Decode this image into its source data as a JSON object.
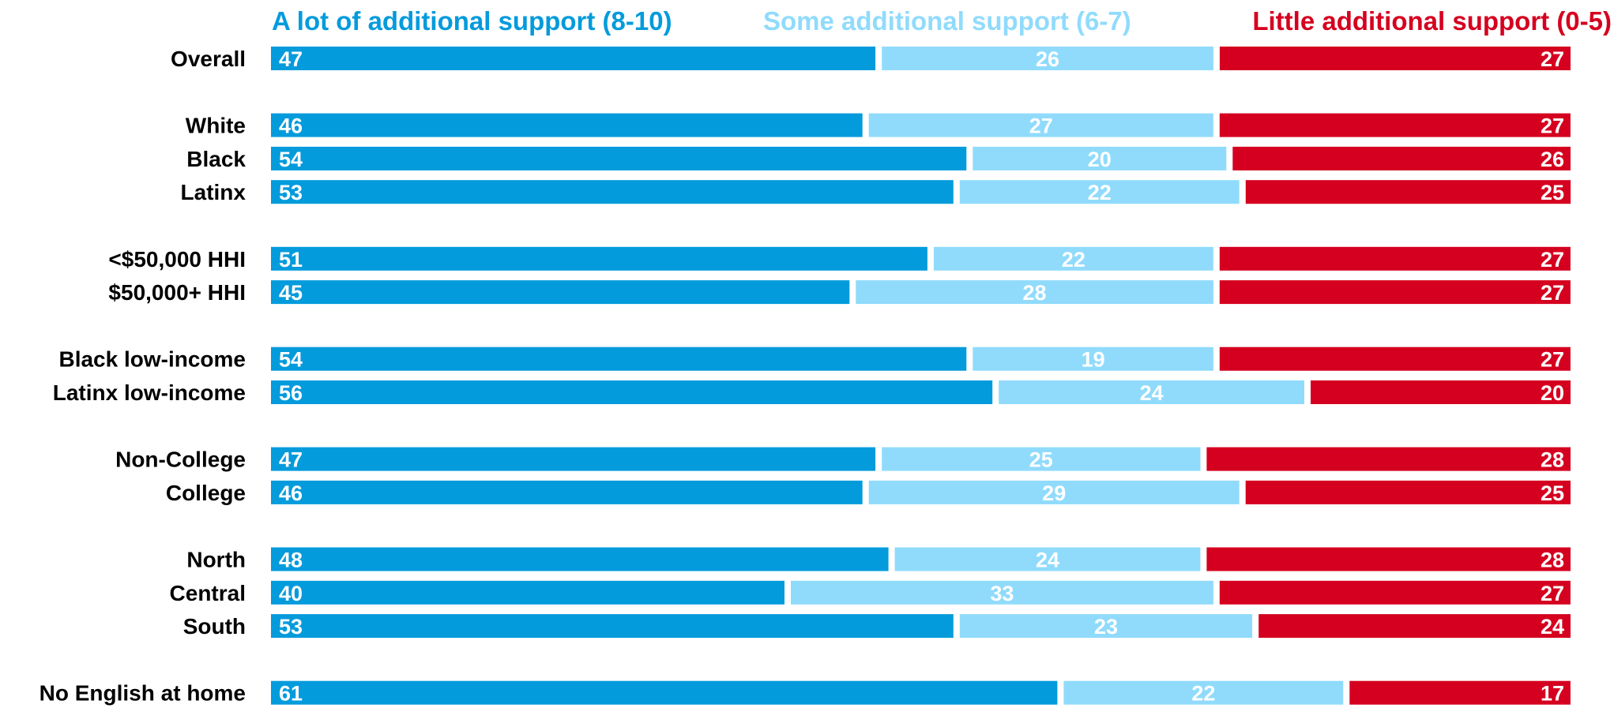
{
  "chart_data": {
    "type": "bar",
    "orientation": "horizontal",
    "stacked": true,
    "legend_position": "top",
    "grid": false,
    "colors": {
      "a_lot": "#039BDC",
      "some": "#90DBFC",
      "little": "#D5001F",
      "label_text": "#000000",
      "value_text": "#FFFFFF"
    },
    "series": [
      {
        "name": "A lot of additional support (8-10)",
        "color": "#039BDC"
      },
      {
        "name": "Some additional support (6-7)",
        "color": "#90DBFC"
      },
      {
        "name": "Little additional support (0-5)",
        "color": "#D5001F"
      }
    ],
    "categories": [
      "Overall",
      "White",
      "Black",
      "Latinx",
      "<$50,000 HHI",
      "$50,000+ HHI",
      "Black low-income",
      "Latinx low-income",
      "Non-College",
      "College",
      "North",
      "Central",
      "South",
      "No English at home"
    ],
    "groups": [
      1,
      2,
      2,
      2,
      3,
      3,
      4,
      4,
      5,
      5,
      6,
      6,
      6,
      7
    ],
    "values": [
      [
        47,
        26,
        27
      ],
      [
        46,
        27,
        27
      ],
      [
        54,
        20,
        26
      ],
      [
        53,
        22,
        25
      ],
      [
        51,
        22,
        27
      ],
      [
        45,
        28,
        27
      ],
      [
        54,
        19,
        27
      ],
      [
        56,
        24,
        20
      ],
      [
        47,
        25,
        28
      ],
      [
        46,
        29,
        25
      ],
      [
        48,
        24,
        28
      ],
      [
        40,
        33,
        27
      ],
      [
        53,
        23,
        24
      ],
      [
        61,
        22,
        17
      ]
    ],
    "xlim": [
      0,
      100
    ]
  }
}
